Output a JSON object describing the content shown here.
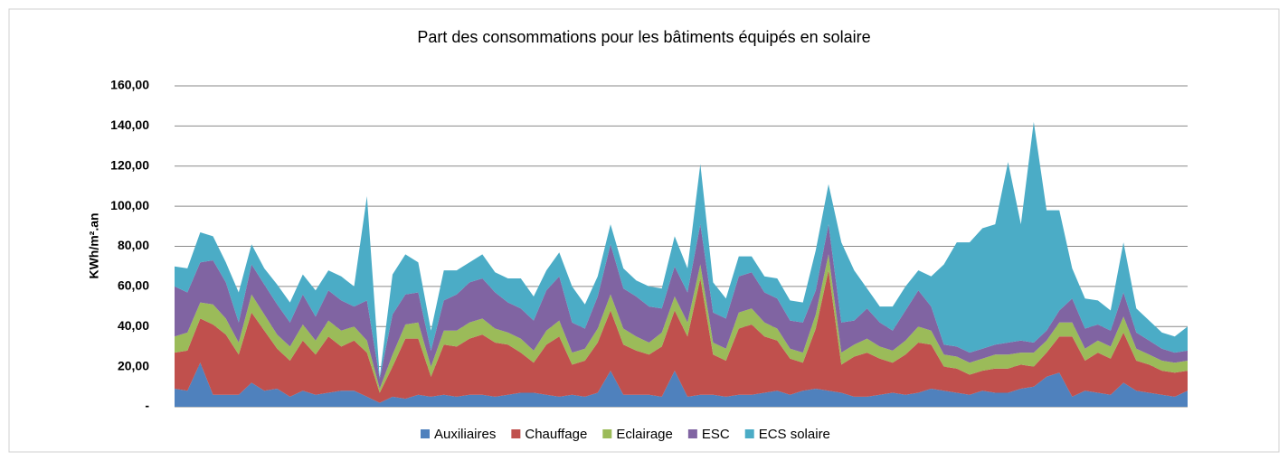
{
  "chart_data": {
    "type": "stacked_area",
    "title": "Part des consommations pour les bâtiments équipés en solaire",
    "y_label": "KWh/m².an",
    "ylim": [
      0,
      160
    ],
    "yticks": [
      {
        "value": 0,
        "label": "-"
      },
      {
        "value": 20,
        "label": "20,00"
      },
      {
        "value": 40,
        "label": "40,00"
      },
      {
        "value": 60,
        "label": "60,00"
      },
      {
        "value": 80,
        "label": "80,00"
      },
      {
        "value": 100,
        "label": "100,00"
      },
      {
        "value": 120,
        "label": "120,00"
      },
      {
        "value": 140,
        "label": "140,00"
      },
      {
        "value": 160,
        "label": "160,00"
      }
    ],
    "grid": true,
    "legend": "bottom",
    "series": [
      {
        "name": "Auxiliaires",
        "color": "#4f81bd",
        "values": [
          9,
          8,
          22,
          6,
          6,
          6,
          12,
          8,
          9,
          5,
          8,
          6,
          7,
          8,
          8,
          5,
          2,
          5,
          4,
          6,
          5,
          6,
          5,
          6,
          6,
          5,
          6,
          7,
          7,
          6,
          5,
          6,
          5,
          7,
          18,
          6,
          6,
          6,
          5,
          18,
          5,
          6,
          6,
          5,
          6,
          6,
          7,
          8,
          6,
          8,
          9,
          8,
          7,
          5,
          5,
          6,
          7,
          6,
          7,
          9,
          8,
          7,
          6,
          8,
          7,
          7,
          9,
          10,
          15,
          17,
          5,
          8,
          7,
          6,
          12,
          8,
          7,
          6,
          5,
          8
        ]
      },
      {
        "name": "Chauffage",
        "color": "#c0504d",
        "values": [
          18,
          20,
          22,
          35,
          30,
          20,
          35,
          30,
          20,
          18,
          25,
          20,
          28,
          22,
          25,
          22,
          5,
          15,
          30,
          28,
          10,
          25,
          25,
          28,
          30,
          27,
          25,
          20,
          15,
          25,
          30,
          15,
          18,
          25,
          30,
          25,
          22,
          20,
          25,
          30,
          30,
          58,
          20,
          18,
          33,
          35,
          28,
          25,
          18,
          14,
          30,
          60,
          14,
          20,
          22,
          18,
          15,
          20,
          25,
          22,
          12,
          12,
          10,
          10,
          12,
          12,
          12,
          10,
          12,
          18,
          30,
          15,
          20,
          18,
          25,
          15,
          14,
          12,
          12,
          10
        ]
      },
      {
        "name": "Eclairage",
        "color": "#9bbb59",
        "values": [
          8,
          9,
          8,
          10,
          8,
          6,
          9,
          8,
          7,
          7,
          8,
          7,
          8,
          8,
          7,
          6,
          2,
          6,
          7,
          8,
          5,
          7,
          8,
          8,
          8,
          7,
          6,
          7,
          6,
          7,
          8,
          6,
          6,
          7,
          8,
          8,
          7,
          6,
          7,
          7,
          7,
          7,
          6,
          6,
          8,
          8,
          7,
          6,
          5,
          5,
          7,
          8,
          6,
          6,
          7,
          6,
          6,
          7,
          8,
          7,
          6,
          6,
          6,
          6,
          7,
          7,
          6,
          7,
          6,
          7,
          7,
          6,
          6,
          6,
          8,
          6,
          5,
          5,
          5,
          5
        ]
      },
      {
        "name": "ESC",
        "color": "#8064a2",
        "values": [
          25,
          20,
          20,
          22,
          18,
          10,
          15,
          15,
          15,
          12,
          15,
          12,
          15,
          15,
          10,
          20,
          5,
          20,
          15,
          15,
          8,
          15,
          18,
          20,
          20,
          18,
          15,
          15,
          15,
          20,
          22,
          15,
          10,
          16,
          25,
          20,
          20,
          18,
          12,
          15,
          15,
          20,
          15,
          15,
          18,
          18,
          15,
          15,
          14,
          15,
          12,
          15,
          15,
          12,
          15,
          12,
          10,
          15,
          18,
          12,
          5,
          5,
          5,
          5,
          5,
          6,
          6,
          5,
          5,
          6,
          12,
          10,
          8,
          8,
          12,
          8,
          7,
          6,
          5,
          5
        ]
      },
      {
        "name": "ECS solaire",
        "color": "#4bacc6",
        "values": [
          10,
          12,
          15,
          12,
          10,
          15,
          10,
          8,
          10,
          10,
          10,
          13,
          10,
          12,
          10,
          52,
          1,
          20,
          20,
          15,
          10,
          15,
          12,
          10,
          12,
          10,
          12,
          15,
          12,
          10,
          12,
          18,
          12,
          10,
          10,
          10,
          8,
          10,
          10,
          15,
          12,
          30,
          15,
          10,
          10,
          8,
          8,
          10,
          10,
          10,
          20,
          20,
          40,
          25,
          10,
          8,
          12,
          12,
          10,
          15,
          40,
          52,
          55,
          60,
          60,
          90,
          58,
          110,
          60,
          50,
          15,
          15,
          12,
          10,
          25,
          12,
          10,
          8,
          8,
          12
        ]
      }
    ]
  }
}
